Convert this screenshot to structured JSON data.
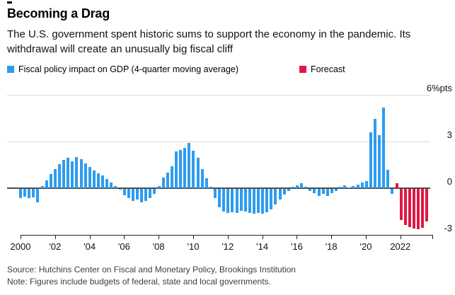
{
  "header": {
    "title": "Becoming a Drag",
    "subtitle": "The U.S. government spent historic sums to support the economy in the pandemic. Its withdrawal will create an unusually big fiscal cliff"
  },
  "legend": [
    {
      "label": "Fiscal policy impact on GDP (4-quarter moving average)",
      "color": "#2d9cf0"
    },
    {
      "label": "Forecast",
      "color": "#e11745"
    }
  ],
  "footer": {
    "source": "Source: Hutchins Center on Fiscal and Monetary Policy, Brookings Institution",
    "note": "Note: Figures include budgets of federal, state and local governments."
  },
  "colors": {
    "actual_bar": "#2d9cf0",
    "forecast_bar": "#e11745",
    "gridline": "#d8d8d8",
    "zero_line": "#4d4d4d",
    "axis": "#222222"
  },
  "chart_data": {
    "type": "bar",
    "title": "Fiscal policy impact on GDP (4-quarter moving average), with forecast",
    "ylabel": "%pts",
    "ylim": [
      -3,
      6
    ],
    "grid": "horizontal",
    "legend_position": "top-left",
    "frequency": "quarterly",
    "x_start": "2000 Q1",
    "x_end": "2023 Q3",
    "forecast_start_index": 87,
    "forecast_start_label": "2021 Q4",
    "y_axis": {
      "ticks": [
        {
          "label": "6%pts",
          "value": 6
        },
        {
          "label": "3",
          "value": 3
        },
        {
          "label": "0",
          "value": 0
        },
        {
          "label": "-3",
          "value": -3
        }
      ],
      "gridline_values": [
        6,
        3
      ],
      "zero_line": true
    },
    "x_axis": {
      "tick_years": [
        2000,
        2002,
        2004,
        2006,
        2008,
        2010,
        2012,
        2014,
        2016,
        2018,
        2020,
        2022
      ],
      "tick_labels": [
        "2000",
        "'02",
        "'04",
        "'06",
        "'08",
        "'10",
        "'12",
        "'14",
        "'16",
        "'18",
        "'20",
        "2022"
      ],
      "end_tick": true
    },
    "series": [
      {
        "name": "Fiscal policy impact on GDP (4-quarter moving average)",
        "color": "#2d9cf0",
        "role": "actual"
      },
      {
        "name": "Forecast",
        "color": "#e11745",
        "role": "forecast"
      }
    ],
    "values": [
      -0.6,
      -0.5,
      -0.6,
      -0.55,
      -0.85,
      0.15,
      0.5,
      0.9,
      1.25,
      1.55,
      1.8,
      1.95,
      1.75,
      2.0,
      1.85,
      1.6,
      1.35,
      1.15,
      0.95,
      0.8,
      0.6,
      0.35,
      0.15,
      -0.05,
      -0.4,
      -0.6,
      -0.75,
      -0.7,
      -0.85,
      -0.75,
      -0.6,
      -0.3,
      0.15,
      0.7,
      1.0,
      1.4,
      2.35,
      2.45,
      2.6,
      2.9,
      2.4,
      1.95,
      1.25,
      0.65,
      0.1,
      -0.6,
      -1.2,
      -1.45,
      -1.55,
      -1.5,
      -1.55,
      -1.4,
      -1.45,
      -1.55,
      -1.6,
      -1.55,
      -1.6,
      -1.5,
      -1.3,
      -1.0,
      -0.7,
      -0.35,
      -0.15,
      0.1,
      0.2,
      0.3,
      0.1,
      -0.15,
      -0.25,
      -0.45,
      -0.3,
      -0.45,
      -0.25,
      -0.15,
      0.1,
      0.2,
      0.05,
      0.15,
      0.25,
      0.35,
      0.45,
      3.6,
      4.45,
      3.4,
      5.2,
      1.2,
      -0.3,
      0.3,
      -2.0,
      -2.3,
      -2.45,
      -2.55,
      -2.6,
      -2.5,
      -2.1
    ]
  }
}
